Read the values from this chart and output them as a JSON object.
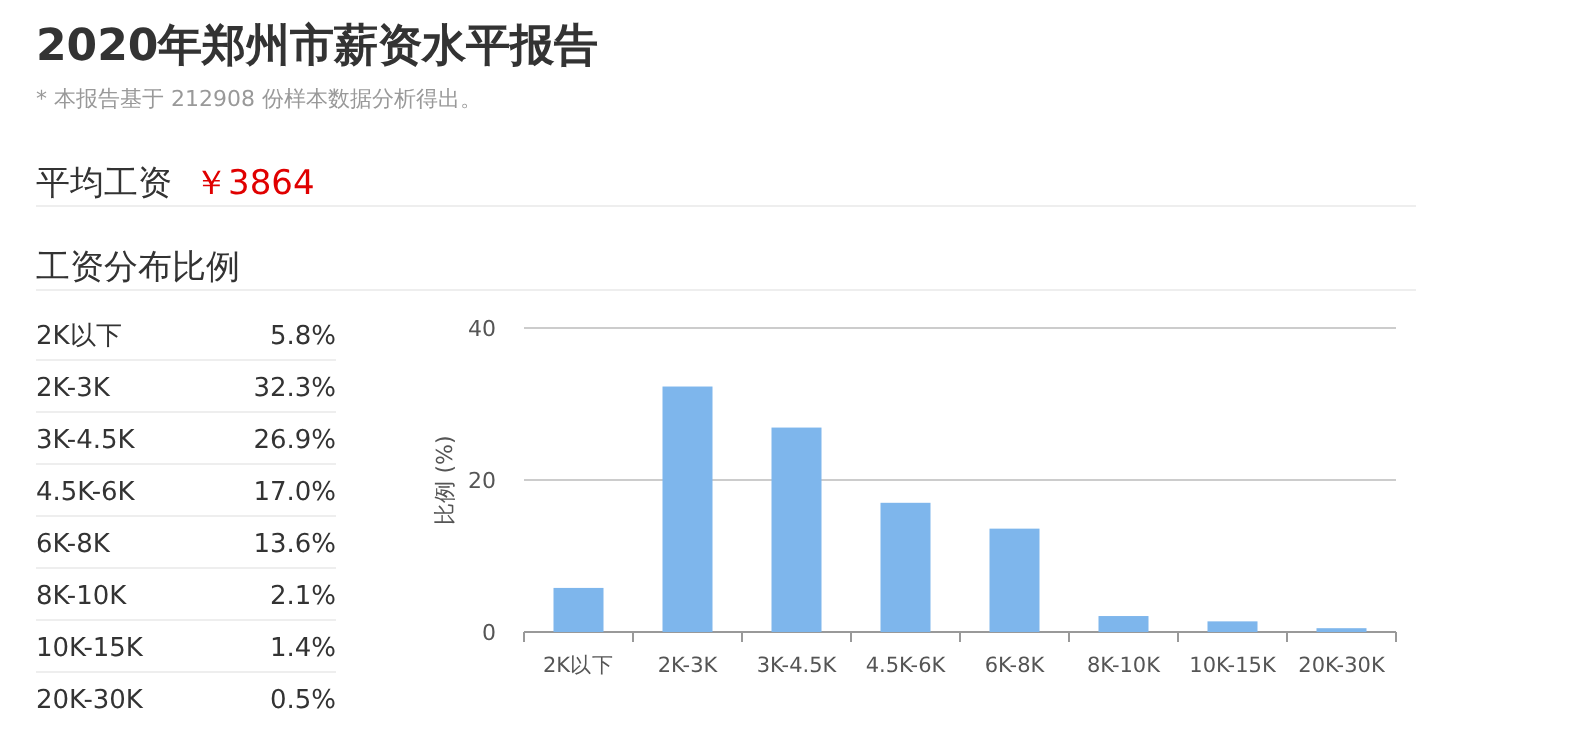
{
  "chart_data": {
    "type": "bar",
    "title": "2020年郑州市薪资水平报告",
    "annotations": [
      "* 本报告基于 212908 份样本数据分析得出。",
      "平均工资",
      "￥3864",
      "工资分布比例",
      "5.8%",
      "32.3%",
      "26.9%",
      "17.0%",
      "13.6%",
      "2.1%",
      "1.4%",
      "0.5%"
    ],
    "categories": [
      "2K以下",
      "2K-3K",
      "3K-4.5K",
      "4.5K-6K",
      "6K-8K",
      "8K-10K",
      "10K-15K",
      "20K-30K"
    ],
    "values": [
      5.8,
      32.3,
      26.9,
      17.0,
      13.6,
      2.1,
      1.4,
      0.5
    ],
    "color": "#7eb6ec",
    "ylabel": "比例 (%)",
    "ylim": [
      0,
      40
    ],
    "yticks": [
      0,
      20,
      40
    ],
    "grid": "y"
  }
}
